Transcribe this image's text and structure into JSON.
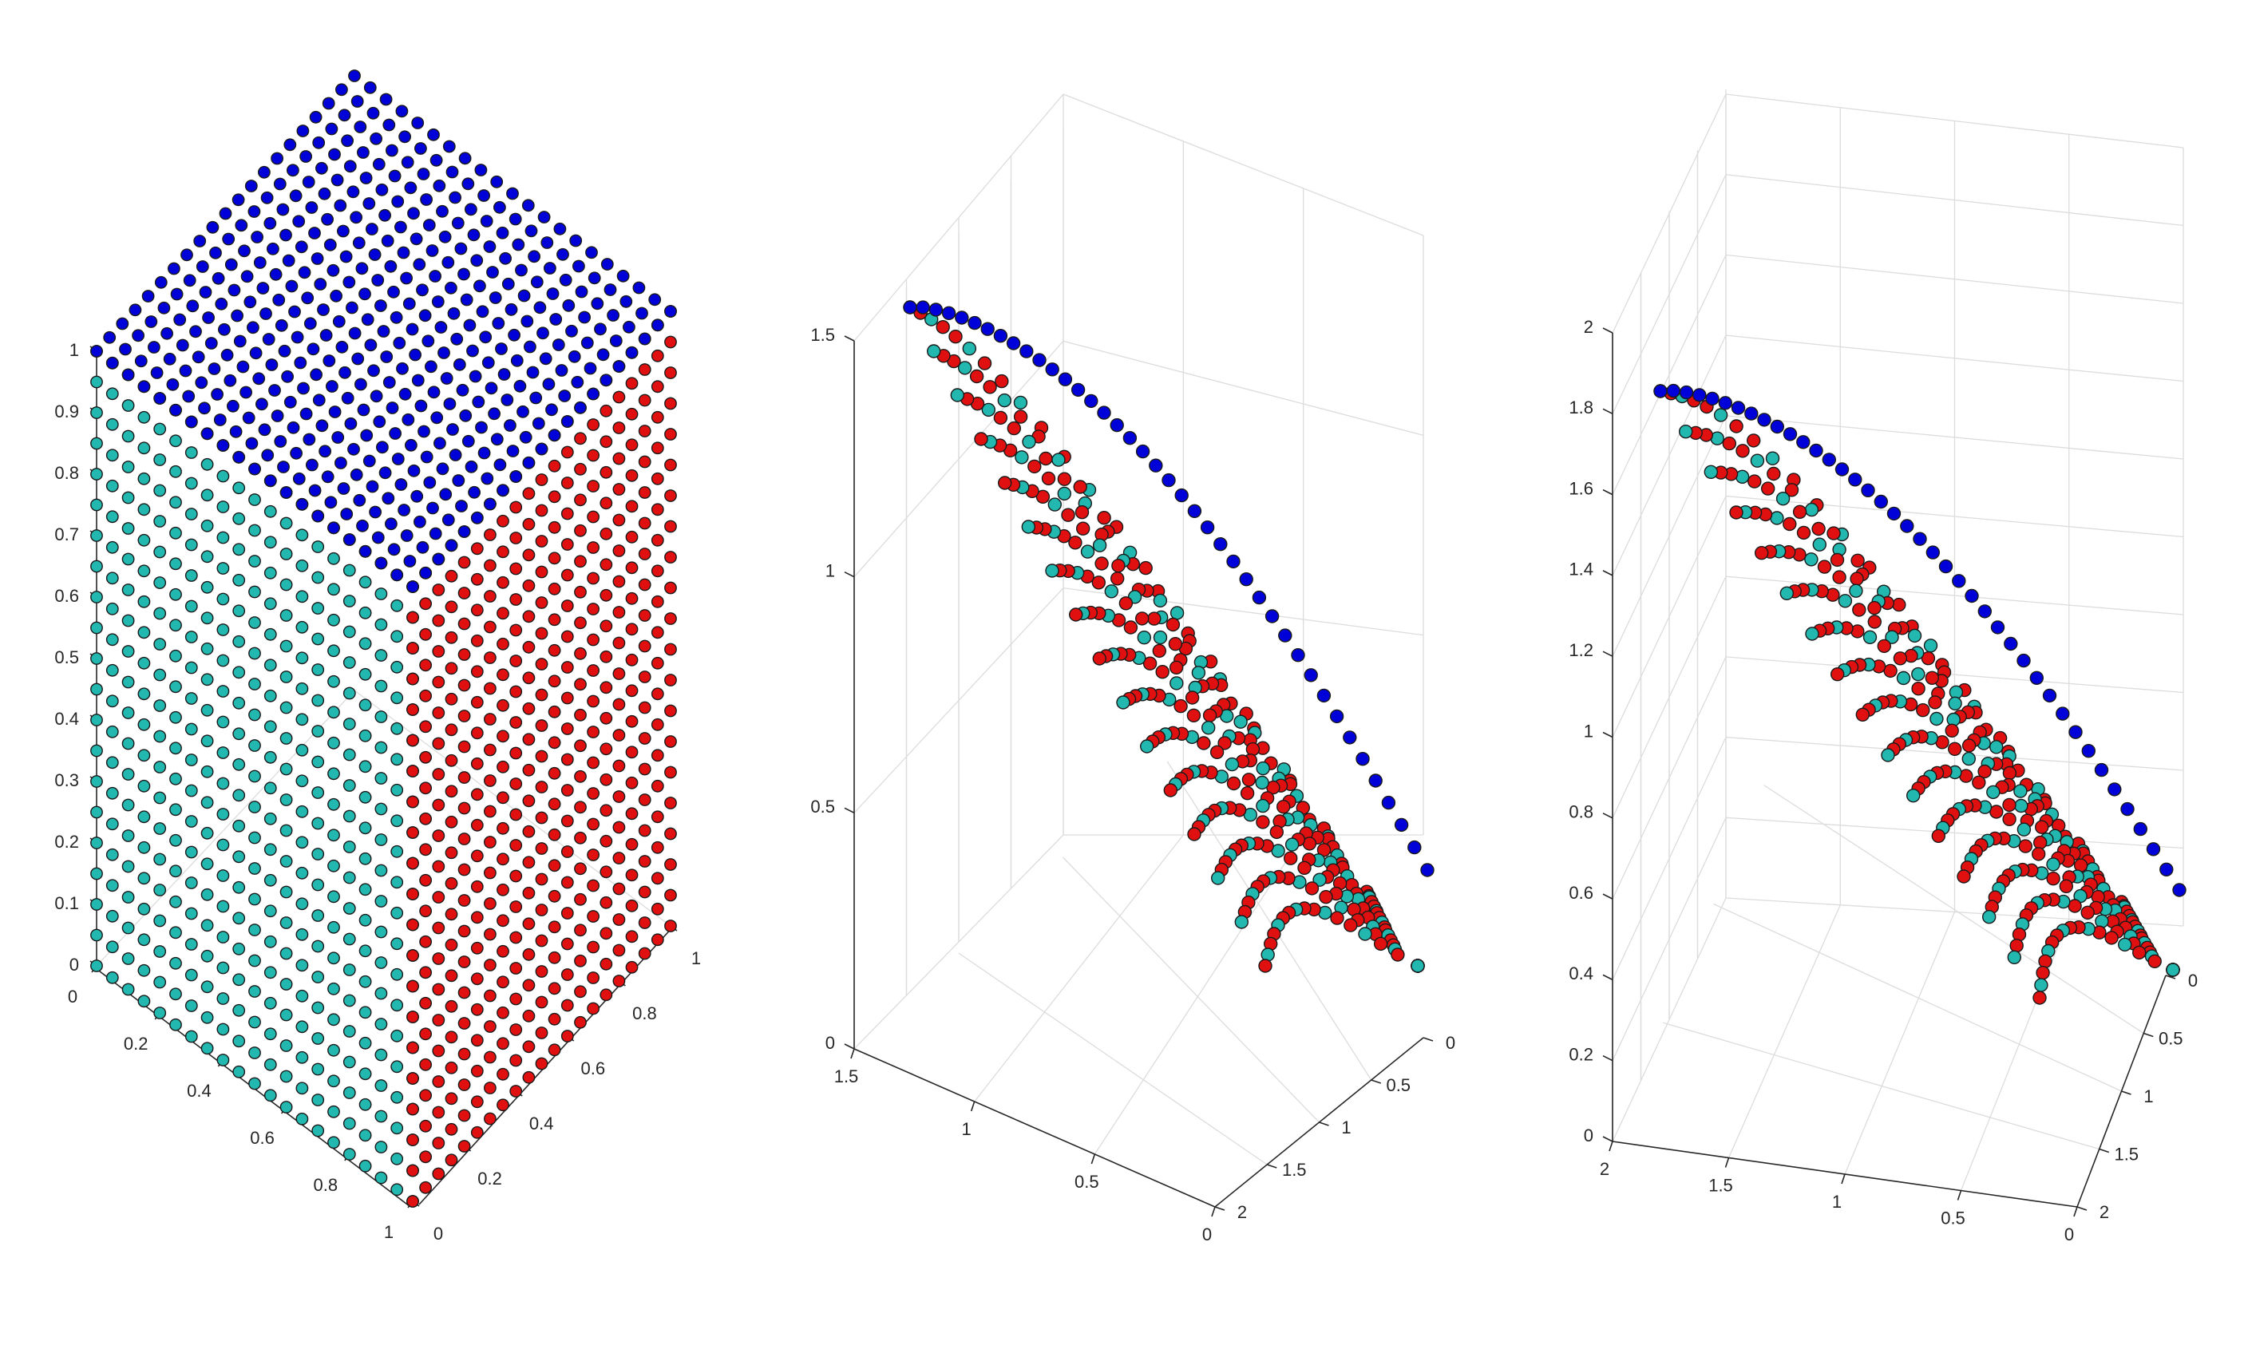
{
  "figure": {
    "background": "#ffffff"
  },
  "colors": {
    "blue": "#0000d8",
    "teal": "#22b8b0",
    "red": "#e01010",
    "edge": "#1a1a1a",
    "axis": "#262626",
    "grid": "#dcdcdc"
  },
  "chart_data": [
    {
      "type": "scatter",
      "title": "",
      "xlabel": "",
      "ylabel": "",
      "zlabel": "",
      "grid": false,
      "description_of_geometry": "points on the three visible faces of the unit cube, grid step 0.05",
      "series": [
        {
          "color": "#0000d8",
          "face": "top",
          "plane": "z = 1",
          "x_range": [
            0,
            1
          ],
          "y_range": [
            0,
            1
          ],
          "step": 0.05
        },
        {
          "color": "#22b8b0",
          "face": "left",
          "plane": "x = 1",
          "y_range": [
            0,
            1
          ],
          "z_range": [
            0,
            1
          ],
          "step": 0.05
        },
        {
          "color": "#e01010",
          "face": "right",
          "plane": "y = 1",
          "x_range": [
            0,
            1
          ],
          "z_range": [
            0,
            1
          ],
          "step": 0.05
        }
      ],
      "xlim": [
        0,
        1
      ],
      "ylim": [
        0,
        1
      ],
      "zlim": [
        0,
        1
      ],
      "xticks": [
        "0",
        "0.2",
        "0.4",
        "0.6",
        "0.8",
        "1"
      ],
      "yticks": [
        "0",
        "0.2",
        "0.4",
        "0.6",
        "0.8",
        "1"
      ],
      "zticks": [
        "0",
        "0.1",
        "0.2",
        "0.3",
        "0.4",
        "0.5",
        "0.6",
        "0.7",
        "0.8",
        "0.9",
        "1"
      ]
    },
    {
      "type": "scatter",
      "title": "",
      "xlabel": "",
      "ylabel": "",
      "zlabel": "",
      "grid": true,
      "description_of_geometry": "same cube-face points projected onto a concave front",
      "series": [
        {
          "color": "#0000d8"
        },
        {
          "color": "#22b8b0"
        },
        {
          "color": "#e01010"
        }
      ],
      "xlim": [
        0,
        1.5
      ],
      "ylim": [
        0,
        2
      ],
      "zlim": [
        0,
        1.5
      ],
      "xticks": [
        "0",
        "0.5",
        "1",
        "1.5"
      ],
      "yticks": [
        "0",
        "0.5",
        "1",
        "1.5",
        "2"
      ],
      "zticks": [
        "0",
        "0.5",
        "1",
        "1.5"
      ]
    },
    {
      "type": "scatter",
      "title": "",
      "xlabel": "",
      "ylabel": "",
      "zlabel": "",
      "grid": true,
      "description_of_geometry": "same cube-face points projected onto a concave front",
      "series": [
        {
          "color": "#0000d8"
        },
        {
          "color": "#22b8b0"
        },
        {
          "color": "#e01010"
        }
      ],
      "xlim": [
        0,
        2
      ],
      "ylim": [
        0,
        2
      ],
      "zlim": [
        0,
        2
      ],
      "xticks": [
        "0",
        "0.5",
        "1",
        "1.5",
        "2"
      ],
      "yticks": [
        "0",
        "0.5",
        "1",
        "1.5",
        "2"
      ],
      "zticks": [
        "0",
        "0.2",
        "0.4",
        "0.6",
        "0.8",
        "1",
        "1.2",
        "1.4",
        "1.6",
        "1.8",
        "2"
      ]
    }
  ]
}
